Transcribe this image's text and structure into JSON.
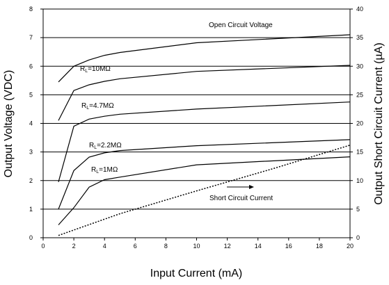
{
  "chart_data": {
    "type": "line",
    "title": "",
    "xlabel": "Input Current (mA)",
    "ylabel": "Output Voltage (VDC)",
    "y2label": "Output Short Circuit Current (µA)",
    "xlim": [
      0,
      20
    ],
    "ylim": [
      0,
      8
    ],
    "y2lim": [
      0,
      40
    ],
    "grid": "horizontal",
    "x_ticks": [
      "0",
      "2",
      "4",
      "6",
      "8",
      "10",
      "12",
      "14",
      "16",
      "18",
      "20"
    ],
    "y_ticks": [
      "0",
      "1",
      "2",
      "3",
      "4",
      "5",
      "6",
      "7",
      "8"
    ],
    "y2_ticks": [
      "0",
      "5",
      "10",
      "15",
      "20",
      "25",
      "30",
      "35",
      "40"
    ],
    "series": [
      {
        "name": "Open Circuit Voltage",
        "axis": "left",
        "style": "solid",
        "x": [
          1,
          2,
          3,
          4,
          5,
          10,
          20
        ],
        "y": [
          5.45,
          6.0,
          6.22,
          6.38,
          6.48,
          6.82,
          7.1
        ]
      },
      {
        "name": "RL=10MΩ",
        "axis": "left",
        "style": "solid",
        "x": [
          1,
          2,
          3,
          4,
          5,
          10,
          20
        ],
        "y": [
          4.1,
          5.15,
          5.35,
          5.47,
          5.56,
          5.82,
          6.03
        ]
      },
      {
        "name": "RL=4.7MΩ",
        "axis": "left",
        "style": "solid",
        "x": [
          1,
          2,
          3,
          4,
          5,
          10,
          20
        ],
        "y": [
          1.95,
          3.9,
          4.15,
          4.25,
          4.32,
          4.5,
          4.75
        ]
      },
      {
        "name": "RL=2.2MΩ",
        "axis": "left",
        "style": "solid",
        "x": [
          1,
          2,
          3,
          4,
          5,
          10,
          20
        ],
        "y": [
          1.0,
          2.35,
          2.82,
          2.97,
          3.05,
          3.22,
          3.43
        ]
      },
      {
        "name": "RL=1MΩ",
        "axis": "left",
        "style": "solid",
        "x": [
          1,
          2,
          3,
          4,
          5,
          10,
          20
        ],
        "y": [
          0.45,
          1.05,
          1.77,
          2.03,
          2.12,
          2.55,
          2.83
        ]
      },
      {
        "name": "Short Circuit Current",
        "axis": "right",
        "style": "dotted",
        "x": [
          1,
          5,
          10,
          15,
          20
        ],
        "y": [
          0.4,
          4.2,
          8.2,
          12.1,
          16.2
        ]
      }
    ],
    "annotations": {
      "open_circuit": "Open Circuit Voltage",
      "short_circuit": "Short Circuit Current",
      "rl_prefix": "R",
      "rl_sub": "L",
      "rl10": "=10MΩ",
      "rl47": "=4.7MΩ",
      "rl22": "=2.2MΩ",
      "rl1": "=1MΩ"
    }
  }
}
